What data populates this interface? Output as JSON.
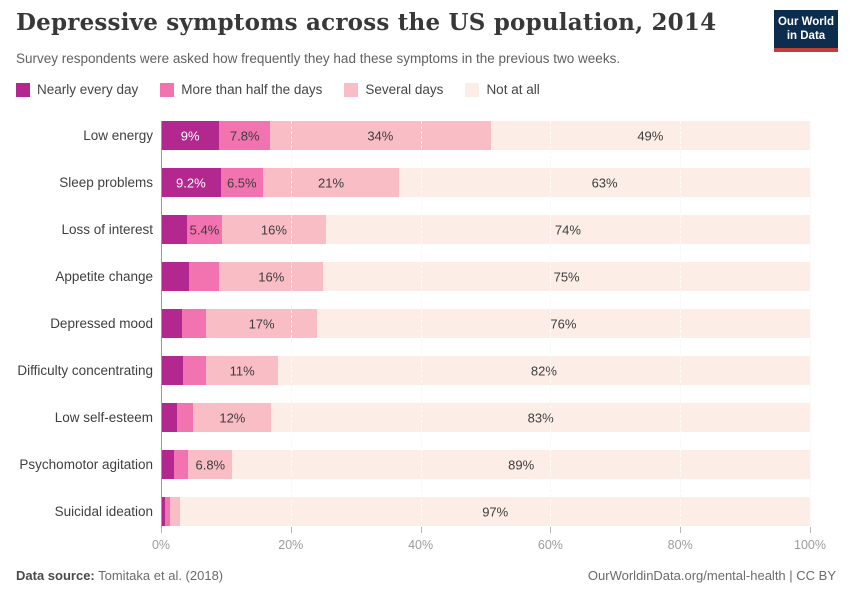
{
  "header": {
    "title": "Depressive symptoms across the US population, 2014",
    "subtitle": "Survey respondents were asked how frequently they had these symptoms in the previous two weeks.",
    "logo": {
      "line1": "Our World",
      "line2": "in Data",
      "bg_color": "#0d2d4f",
      "accent_color": "#c33d3d"
    }
  },
  "chart_data": {
    "type": "bar",
    "orientation": "horizontal",
    "stacked": true,
    "xlim": [
      0,
      100
    ],
    "grid": "vertical-dashed",
    "legend_position": "top",
    "x_ticks": [
      "0%",
      "20%",
      "40%",
      "60%",
      "80%",
      "100%"
    ],
    "categories": [
      "Low energy",
      "Sleep problems",
      "Loss of interest",
      "Appetite change",
      "Depressed mood",
      "Difficulty concentrating",
      "Low self-esteem",
      "Psychomotor agitation",
      "Suicidal ideation"
    ],
    "series": [
      {
        "name": "Nearly every day",
        "color": "#b2288e",
        "label_color": "#ffffff",
        "values": [
          9,
          9.2,
          4,
          4.3,
          3.2,
          3.4,
          2.4,
          2.0,
          0.6
        ],
        "labels": [
          "9%",
          "9.2%",
          null,
          null,
          null,
          null,
          null,
          null,
          null
        ]
      },
      {
        "name": "More than half the days",
        "color": "#f173af",
        "label_color": "#3d3d3d",
        "values": [
          7.8,
          6.5,
          5.4,
          4.7,
          3.8,
          3.6,
          2.6,
          2.2,
          0.8
        ],
        "labels": [
          "7.8%",
          "6.5%",
          "5.4%",
          null,
          null,
          null,
          null,
          null,
          null
        ]
      },
      {
        "name": "Several days",
        "color": "#f9bdc6",
        "label_color": "#3d3d3d",
        "values": [
          34,
          21,
          16,
          16,
          17,
          11,
          12,
          6.8,
          1.6
        ],
        "labels": [
          "34%",
          "21%",
          "16%",
          "16%",
          "17%",
          "11%",
          "12%",
          "6.8%",
          null
        ]
      },
      {
        "name": "Not at all",
        "color": "#fceee6",
        "label_color": "#3d3d3d",
        "values": [
          49,
          63,
          74,
          75,
          76,
          82,
          83,
          89,
          97
        ],
        "labels": [
          "49%",
          "63%",
          "74%",
          "75%",
          "76%",
          "82%",
          "83%",
          "89%",
          "97%"
        ]
      }
    ]
  },
  "footer": {
    "source_label": "Data source:",
    "source_text": " Tomitaka et al. (2018)",
    "credit": "OurWorldinData.org/mental-health | CC BY"
  }
}
